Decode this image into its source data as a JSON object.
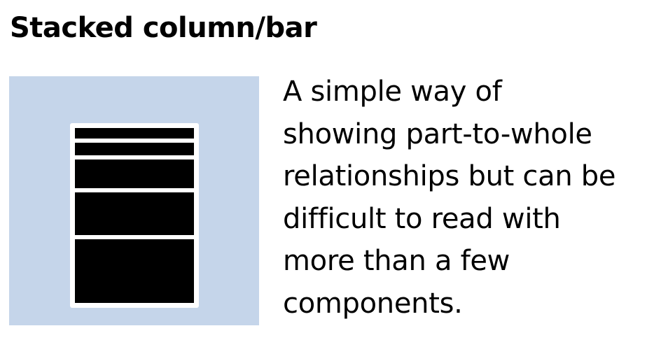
{
  "title": "Stacked column/bar",
  "description_lines": [
    "A simple way of",
    "showing part-to-whole",
    "relationships but can be",
    "difficult to read with",
    "more than a few",
    "components."
  ],
  "icon": {
    "name": "stacked-column-icon",
    "panel_color": "#c5d5ea",
    "segment_color": "#000000",
    "segment_count": 5
  }
}
